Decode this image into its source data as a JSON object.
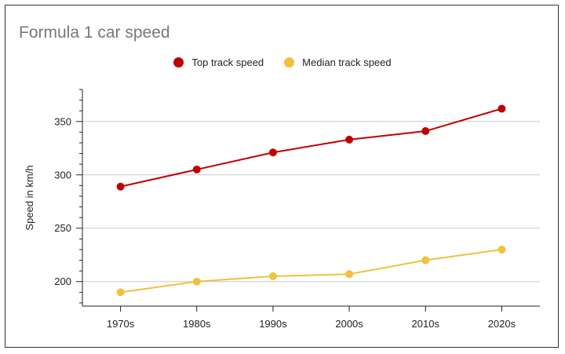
{
  "chart_data": {
    "type": "line",
    "title": "Formula 1 car speed",
    "xlabel": "",
    "ylabel": "Speed in km/h",
    "categories": [
      "1970s",
      "1980s",
      "1990s",
      "2000s",
      "2010s",
      "2020s"
    ],
    "series": [
      {
        "name": "Top track speed",
        "color": "#c00000",
        "values": [
          289,
          305,
          321,
          333,
          341,
          362
        ]
      },
      {
        "name": "Median track speed",
        "color": "#f0c040",
        "values": [
          190,
          200,
          205,
          207,
          220,
          230
        ]
      }
    ],
    "yticks": [
      200,
      250,
      300,
      350
    ],
    "ylim": [
      177,
      380
    ],
    "grid": true,
    "legend_position": "top-center"
  }
}
